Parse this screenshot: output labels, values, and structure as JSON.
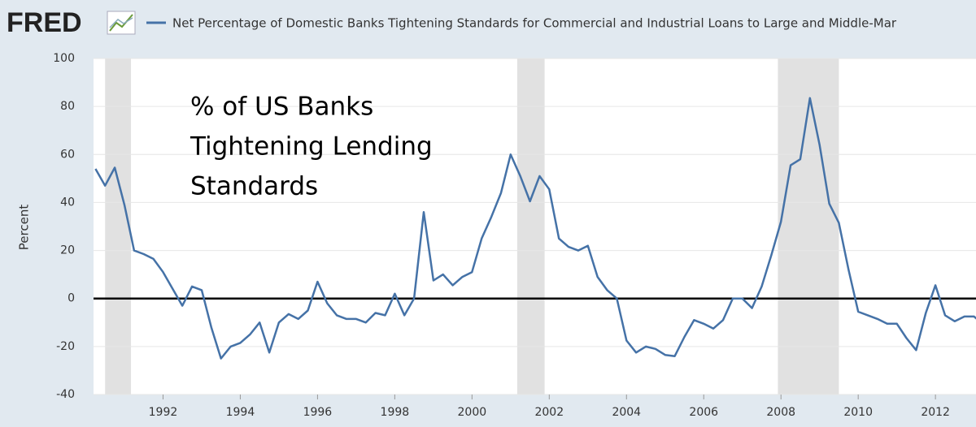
{
  "chart_data": {
    "type": "line",
    "logo": "FRED",
    "title": "Net Percentage of Domestic Banks Tightening Standards for Commercial and Industrial Loans to Large and Middle-Mar",
    "ylabel": "Percent",
    "annotation": [
      "% of US Banks",
      "Tightening Lending",
      "Standards"
    ],
    "x": [
      1990.25,
      1990.5,
      1990.75,
      1991,
      1991.25,
      1991.5,
      1991.75,
      1992,
      1992.25,
      1992.5,
      1992.75,
      1993,
      1993.25,
      1993.5,
      1993.75,
      1994,
      1994.25,
      1994.5,
      1994.75,
      1995,
      1995.25,
      1995.5,
      1995.75,
      1996,
      1996.25,
      1996.5,
      1996.75,
      1997,
      1997.25,
      1997.5,
      1997.75,
      1998,
      1998.25,
      1998.5,
      1998.75,
      1999,
      1999.25,
      1999.5,
      1999.75,
      2000,
      2000.25,
      2000.5,
      2000.75,
      2001,
      2001.25,
      2001.5,
      2001.75,
      2002,
      2002.25,
      2002.5,
      2002.75,
      2003,
      2003.25,
      2003.5,
      2003.75,
      2004,
      2004.25,
      2004.5,
      2004.75,
      2005,
      2005.25,
      2005.5,
      2005.75,
      2006,
      2006.25,
      2006.5,
      2006.75,
      2007,
      2007.25,
      2007.5,
      2007.75,
      2008,
      2008.25,
      2008.5,
      2008.75,
      2009,
      2009.25,
      2009.5,
      2009.75,
      2010,
      2010.25,
      2010.5,
      2010.75,
      2011,
      2011.25,
      2011.5,
      2011.75,
      2012,
      2012.25,
      2012.5,
      2012.75,
      2013,
      2013.25
    ],
    "series": [
      {
        "name": "Net Percentage of Domestic Banks Tightening Standards for Commercial and Industrial Loans to Large and Middle-Mar",
        "color": "#4572a7",
        "values": [
          54,
          47,
          54.5,
          39,
          20,
          18.5,
          16.5,
          11,
          4,
          -3,
          5,
          3.5,
          -12,
          -25,
          -20,
          -18.5,
          -15,
          -10,
          -22.5,
          -10,
          -6.5,
          -8.5,
          -5,
          7,
          -2,
          -7,
          -8.5,
          -8.5,
          -10,
          -6,
          -7,
          2,
          -7,
          0,
          36,
          7.5,
          10,
          5.5,
          9,
          11,
          25,
          34,
          44,
          60,
          51,
          40.5,
          51,
          45.5,
          25,
          21.5,
          20,
          22,
          9,
          3.5,
          0,
          -17.5,
          -22.5,
          -20,
          -21,
          -23.5,
          -24,
          -16,
          -9,
          -10.5,
          -12.5,
          -9,
          0,
          0,
          -4,
          5,
          18,
          32,
          55.5,
          58,
          83.5,
          64,
          39.5,
          31.5,
          12,
          -5.5,
          -7,
          -8.5,
          -10.5,
          -10.5,
          -16.5,
          -21.5,
          -6,
          5.5,
          -7,
          -9.5,
          -7.5,
          -7.5,
          -11
        ]
      }
    ],
    "recessions": [
      [
        1990.5,
        1991.17
      ],
      [
        2001.17,
        2001.88
      ],
      [
        2007.92,
        2009.5
      ]
    ],
    "reference_line": 0,
    "xlim": [
      1990.2,
      2013.05
    ],
    "xticks": [
      1992,
      1994,
      1996,
      1998,
      2000,
      2002,
      2004,
      2006,
      2008,
      2010,
      2012
    ],
    "ylim": [
      -40,
      100
    ],
    "yticks": [
      -40,
      -20,
      0,
      20,
      40,
      60,
      80,
      100
    ],
    "grid": true
  }
}
